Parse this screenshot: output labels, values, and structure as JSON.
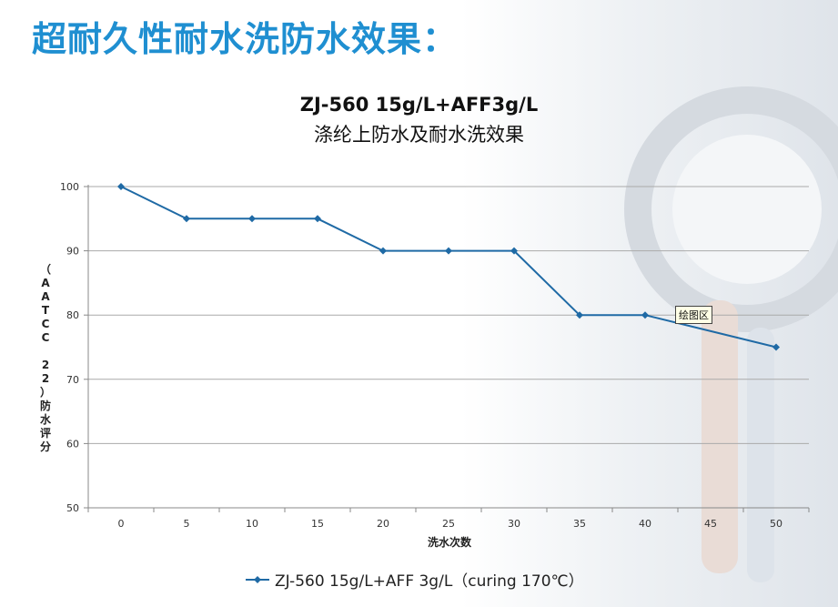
{
  "slide_title": "超耐久性耐水洗防水效果：",
  "tooltip": "绘图区",
  "colors": {
    "title": "#1f8fd1",
    "series": "#1f6aa5",
    "grid": "#aaaaaa"
  },
  "chart_data": {
    "type": "line",
    "title": "ZJ-560  15g/L+AFF3g/L",
    "subtitle": "涤纶上防水及耐水洗效果",
    "xlabel": "洗水次数",
    "ylabel": "（AATCC 22）防水评分",
    "categories": [
      "0",
      "5",
      "10",
      "15",
      "20",
      "25",
      "30",
      "35",
      "40",
      "45",
      "50"
    ],
    "y_ticks": [
      "100",
      "90",
      "80",
      "70",
      "60",
      "50"
    ],
    "ylim": [
      50,
      100
    ],
    "grid": true,
    "legend_position": "bottom",
    "series": [
      {
        "name": "ZJ-560  15g/L+AFF 3g/L（curing 170℃）",
        "points": [
          {
            "x": "0",
            "y": 100
          },
          {
            "x": "5",
            "y": 95
          },
          {
            "x": "10",
            "y": 95
          },
          {
            "x": "15",
            "y": 95
          },
          {
            "x": "20",
            "y": 90
          },
          {
            "x": "25",
            "y": 90
          },
          {
            "x": "30",
            "y": 90
          },
          {
            "x": "35",
            "y": 80
          },
          {
            "x": "40",
            "y": 80
          },
          {
            "x": "50",
            "y": 75
          }
        ]
      }
    ]
  }
}
